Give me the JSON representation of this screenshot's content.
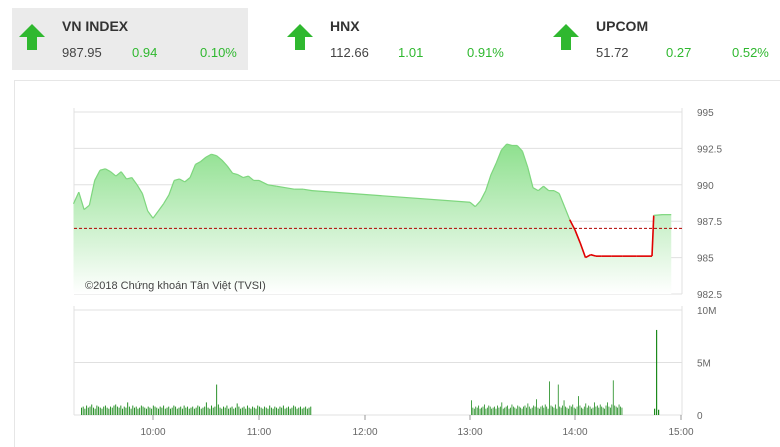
{
  "indices": [
    {
      "name": "VN INDEX",
      "value": "987.95",
      "change": "0.94",
      "percent": "0.10%",
      "active": true
    },
    {
      "name": "HNX",
      "value": "112.66",
      "change": "1.01",
      "percent": "0.91%",
      "active": false
    },
    {
      "name": "UPCOM",
      "value": "51.72",
      "change": "0.27",
      "percent": "0.52%",
      "active": false
    }
  ],
  "colors": {
    "up": "#2fb82f",
    "area_top": "#8ee08e",
    "area_bottom": "#ffffff",
    "line": "#7ed67e",
    "ref_line": "#b00000",
    "below_ref": "#e00000",
    "volume": "#1c8a1c",
    "grid": "#e0e0e0"
  },
  "chart_data": {
    "type": "area",
    "copyright": "©2018 Chứng khoán Tân Việt (TVSI)",
    "x_ticks": [
      "10:00",
      "11:00",
      "12:00",
      "13:00",
      "14:00",
      "15:00"
    ],
    "price_axis": {
      "ticks": [
        "995",
        "992.5",
        "990",
        "987.5",
        "985",
        "982.5"
      ],
      "ylim": [
        982.5,
        995
      ]
    },
    "reference_value": 987.01,
    "price_series": {
      "time": [
        "09:15",
        "09:18",
        "09:21",
        "09:24",
        "09:27",
        "09:30",
        "09:33",
        "09:36",
        "09:39",
        "09:42",
        "09:45",
        "09:48",
        "09:51",
        "09:54",
        "09:57",
        "10:00",
        "10:03",
        "10:06",
        "10:09",
        "10:12",
        "10:15",
        "10:18",
        "10:21",
        "10:24",
        "10:27",
        "10:30",
        "10:33",
        "10:36",
        "10:39",
        "10:42",
        "10:45",
        "10:48",
        "10:51",
        "10:54",
        "10:57",
        "11:00",
        "11:05",
        "11:10",
        "11:15",
        "11:20",
        "11:25",
        "11:30",
        "13:00",
        "13:03",
        "13:06",
        "13:09",
        "13:12",
        "13:15",
        "13:18",
        "13:21",
        "13:24",
        "13:27",
        "13:30",
        "13:33",
        "13:36",
        "13:39",
        "13:42",
        "13:45",
        "13:48",
        "13:51",
        "13:54",
        "13:57",
        "14:00",
        "14:03",
        "14:06",
        "14:09",
        "14:12",
        "14:15",
        "14:18",
        "14:21",
        "14:24",
        "14:27",
        "14:30",
        "14:32",
        "14:35",
        "14:40",
        "14:44",
        "14:45",
        "14:50",
        "14:55"
      ],
      "value": [
        988.7,
        989.5,
        988.3,
        988.6,
        990.3,
        991.0,
        991.1,
        990.9,
        990.6,
        990.9,
        990.4,
        990.5,
        990.0,
        989.4,
        988.2,
        987.7,
        988.2,
        988.7,
        989.3,
        990.3,
        990.4,
        990.2,
        990.5,
        991.4,
        991.6,
        991.9,
        992.1,
        992.0,
        991.7,
        991.3,
        990.8,
        990.7,
        990.5,
        990.6,
        990.3,
        990.3,
        990.0,
        989.9,
        989.8,
        989.7,
        989.7,
        989.6,
        988.8,
        988.5,
        988.9,
        989.6,
        990.7,
        991.5,
        992.4,
        992.8,
        992.7,
        992.7,
        992.3,
        991.2,
        989.8,
        989.6,
        989.9,
        989.6,
        989.6,
        989.4,
        988.5,
        987.6,
        986.9,
        986.0,
        985.0,
        985.2,
        985.1,
        985.1,
        985.1,
        985.1,
        985.1,
        985.1,
        985.1,
        985.1,
        985.1,
        985.1,
        985.1,
        987.9,
        987.95,
        987.95
      ]
    },
    "volume_axis": {
      "ticks": [
        "10M",
        "5M",
        "0"
      ],
      "ylim": [
        0,
        10
      ]
    },
    "volume_series": {
      "unit": "M",
      "morning_start": "09:15",
      "morning_end": "11:30",
      "morning_count": 135,
      "afternoon_start": "13:00",
      "afternoon_end": "14:45",
      "afternoon_count": 105,
      "morning_values": [
        0.7,
        0.8,
        0.6,
        0.9,
        0.7,
        0.8,
        1.0,
        0.7,
        0.6,
        0.9,
        0.8,
        0.7,
        0.6,
        0.8,
        0.9,
        0.7,
        0.6,
        0.8,
        0.7,
        0.9,
        1.0,
        0.8,
        0.7,
        0.9,
        0.6,
        0.8,
        0.7,
        1.2,
        0.8,
        0.6,
        0.9,
        0.7,
        0.8,
        0.6,
        0.7,
        0.9,
        0.8,
        0.7,
        0.6,
        0.8,
        0.7,
        0.6,
        0.9,
        0.8,
        0.7,
        0.6,
        0.8,
        0.7,
        0.9,
        0.6,
        0.7,
        0.8,
        0.6,
        0.7,
        0.9,
        0.8,
        0.6,
        0.7,
        0.8,
        0.6,
        0.9,
        0.7,
        0.8,
        0.6,
        0.7,
        0.8,
        0.6,
        0.7,
        0.9,
        0.8,
        0.6,
        0.7,
        0.8,
        1.2,
        0.7,
        0.6,
        0.9,
        0.7,
        0.8,
        2.9,
        1.0,
        0.7,
        0.6,
        0.8,
        0.7,
        0.9,
        0.6,
        0.7,
        0.8,
        0.6,
        0.7,
        1.1,
        0.8,
        0.6,
        0.7,
        0.8,
        0.6,
        0.9,
        0.7,
        0.6,
        0.8,
        0.7,
        0.6,
        0.9,
        0.8,
        0.7,
        0.6,
        0.8,
        0.7,
        0.6,
        0.9,
        0.7,
        0.6,
        0.8,
        0.7,
        0.6,
        0.8,
        0.7,
        0.9,
        0.6,
        0.7,
        0.8,
        0.6,
        0.7,
        0.9,
        0.8,
        0.6,
        0.7,
        0.8,
        0.6,
        0.7,
        0.8,
        0.6,
        0.7,
        0.8
      ],
      "afternoon_values": [
        1.4,
        0.7,
        0.6,
        0.8,
        0.7,
        0.9,
        0.6,
        0.7,
        0.8,
        1.0,
        0.6,
        0.7,
        0.9,
        0.8,
        0.6,
        0.7,
        0.8,
        0.6,
        0.9,
        0.7,
        0.8,
        1.2,
        0.6,
        0.7,
        0.8,
        0.9,
        0.6,
        0.7,
        1.0,
        0.8,
        0.7,
        0.6,
        0.9,
        0.8,
        0.7,
        0.6,
        0.8,
        0.9,
        0.7,
        1.1,
        0.8,
        0.6,
        0.7,
        0.9,
        0.8,
        1.5,
        0.7,
        0.6,
        0.8,
        0.9,
        0.7,
        1.0,
        0.8,
        0.6,
        3.2,
        0.9,
        0.8,
        0.7,
        1.0,
        0.6,
        2.9,
        0.8,
        0.7,
        0.9,
        1.4,
        0.8,
        0.7,
        0.6,
        0.9,
        0.8,
        1.0,
        0.7,
        0.6,
        0.8,
        1.8,
        0.9,
        0.7,
        0.6,
        0.8,
        1.1,
        0.7,
        0.9,
        0.8,
        0.6,
        0.7,
        1.2,
        0.8,
        0.9,
        0.7,
        1.0,
        0.8,
        0.7,
        0.6,
        0.9,
        1.2,
        0.8,
        0.7,
        1.0,
        3.3,
        0.9,
        0.8,
        0.7,
        1.0,
        0.8,
        0.7
      ],
      "close_values": [
        0.6,
        8.1,
        0.5
      ]
    }
  }
}
